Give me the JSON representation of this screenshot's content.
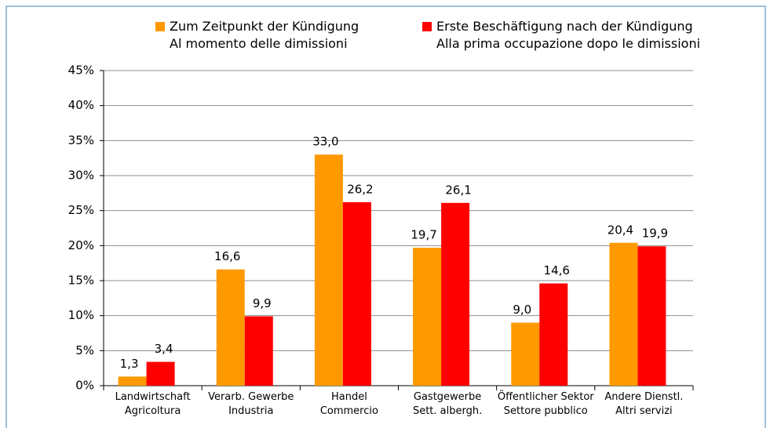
{
  "chart_data": {
    "type": "bar",
    "categories": [
      "Landwirtschaft\nAgricoltura",
      "Verarb. Gewerbe\nIndustria",
      "Handel\nCommercio",
      "Gastgewerbe\nSett. albergh.",
      "Öffentlicher Sektor\nSettore pubblico",
      "Andere Dienstl.\nAltri servizi"
    ],
    "series": [
      {
        "name": "Zum Zeitpunkt der Kündigung\nAl momento delle dimissioni",
        "color": "#ff9900",
        "values": [
          1.3,
          16.6,
          33.0,
          19.7,
          9.0,
          20.4
        ],
        "value_labels": [
          "1,3",
          "16,6",
          "33,0",
          "19,7",
          "9,0",
          "20,4"
        ]
      },
      {
        "name": "Erste Beschäftigung nach der Kündigung\nAlla prima occupazione dopo le dimissioni",
        "color": "#ff0000",
        "values": [
          3.4,
          9.9,
          26.2,
          26.1,
          14.6,
          19.9
        ],
        "value_labels": [
          "3,4",
          "9,9",
          "26,2",
          "26,1",
          "14,6",
          "19,9"
        ]
      }
    ],
    "ylim": [
      0,
      45
    ],
    "yticks": [
      {
        "value": 0,
        "label": "0%"
      },
      {
        "value": 5,
        "label": "5%"
      },
      {
        "value": 10,
        "label": "10%"
      },
      {
        "value": 15,
        "label": "15%"
      },
      {
        "value": 20,
        "label": "20%"
      },
      {
        "value": 25,
        "label": "25%"
      },
      {
        "value": 30,
        "label": "30%"
      },
      {
        "value": 35,
        "label": "35%"
      },
      {
        "value": 40,
        "label": "40%"
      },
      {
        "value": 45,
        "label": "45%"
      }
    ],
    "grid": true,
    "legend": "top"
  }
}
